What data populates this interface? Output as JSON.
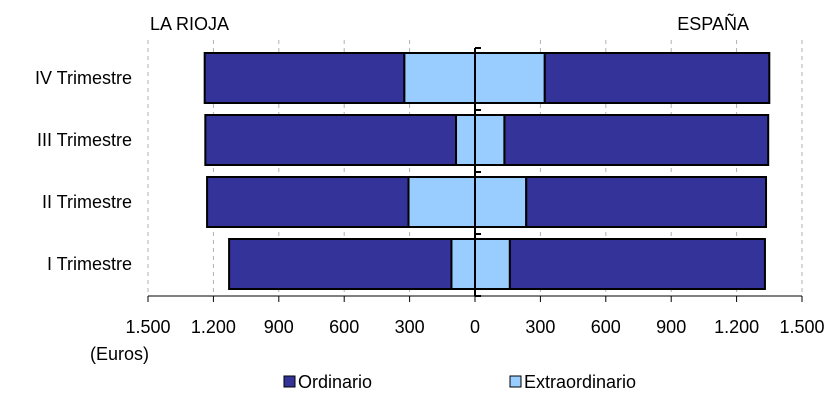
{
  "chart_data": {
    "type": "bar",
    "orientation": "horizontal",
    "stacked": true,
    "diverging": true,
    "left_header": "LA RIOJA",
    "right_header": "ESPAÑA",
    "unit_label": "(Euros)",
    "categories": [
      "IV Trimestre",
      "III Trimestre",
      "II Trimestre",
      "I Trimestre"
    ],
    "xlim": [
      -1500,
      1500
    ],
    "tick_values": [
      -1500,
      -1200,
      -900,
      -600,
      -300,
      0,
      300,
      600,
      900,
      1200,
      1500
    ],
    "tick_labels": [
      "1.500",
      "1.200",
      "900",
      "600",
      "300",
      "0",
      "300",
      "600",
      "900",
      "1.200",
      "1.500"
    ],
    "series": [
      {
        "name": "Ordinario",
        "color": "#333399",
        "la_rioja": [
          916,
          1150,
          924,
          1020
        ],
        "espana": [
          1030,
          1210,
          1100,
          1170
        ]
      },
      {
        "name": "Extraordinario",
        "color": "#99ccff",
        "la_rioja": [
          324,
          87,
          305,
          108
        ],
        "espana": [
          320,
          135,
          235,
          160
        ]
      }
    ],
    "grid": "vertical dashed",
    "legend_position": "bottom"
  }
}
